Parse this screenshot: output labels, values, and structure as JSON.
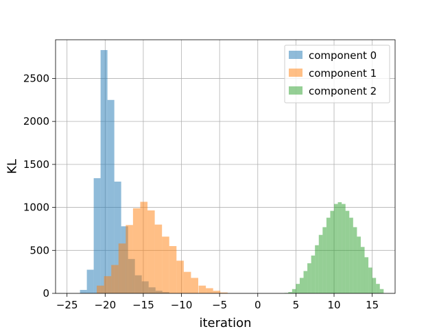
{
  "chart_data": {
    "type": "histogram",
    "title": "",
    "xlabel": "iteration",
    "ylabel": "KL",
    "xlim": [
      -26.5,
      18
    ],
    "ylim": [
      0,
      2950
    ],
    "xticks": [
      -25,
      -20,
      -15,
      -10,
      -5,
      0,
      5,
      10,
      15
    ],
    "yticks": [
      0,
      500,
      1000,
      1500,
      2000,
      2500
    ],
    "grid": true,
    "legend_position": "top-right",
    "series": [
      {
        "name": "component 0",
        "color": "#1f77b4",
        "alpha": 0.5,
        "bin_width": 0.9,
        "bin_starts": [
          -23.3,
          -22.4,
          -21.5,
          -20.6,
          -19.7,
          -18.8,
          -17.9,
          -17.0,
          -16.1,
          -15.2,
          -14.3,
          -13.4,
          -12.5
        ],
        "counts": [
          40,
          275,
          1340,
          2830,
          2250,
          1300,
          780,
          400,
          210,
          140,
          70,
          30,
          15
        ]
      },
      {
        "name": "component 1",
        "color": "#ff7f0e",
        "alpha": 0.5,
        "bin_width": 0.95,
        "bin_starts": [
          -21.1,
          -20.15,
          -19.2,
          -18.25,
          -17.3,
          -16.35,
          -15.4,
          -14.45,
          -13.5,
          -12.55,
          -11.6,
          -10.65,
          -9.7,
          -8.75,
          -7.75,
          -6.8,
          -5.85,
          -4.9
        ],
        "counts": [
          90,
          200,
          330,
          580,
          795,
          990,
          1065,
          965,
          800,
          660,
          550,
          380,
          250,
          180,
          90,
          60,
          30,
          10
        ]
      },
      {
        "name": "component 2",
        "color": "#2ca02c",
        "alpha": 0.5,
        "bin_width": 0.5,
        "bin_starts": [
          3.5,
          4.0,
          4.5,
          5.0,
          5.5,
          6.0,
          6.5,
          7.0,
          7.5,
          8.0,
          8.5,
          9.0,
          9.5,
          10.0,
          10.5,
          11.0,
          11.5,
          12.0,
          12.5,
          13.0,
          13.5,
          14.0,
          14.5,
          15.0,
          15.5,
          16.0
        ],
        "counts": [
          5,
          15,
          50,
          110,
          180,
          260,
          350,
          440,
          560,
          680,
          770,
          880,
          960,
          1040,
          1060,
          1040,
          960,
          880,
          770,
          660,
          540,
          420,
          300,
          180,
          110,
          50
        ]
      }
    ]
  }
}
